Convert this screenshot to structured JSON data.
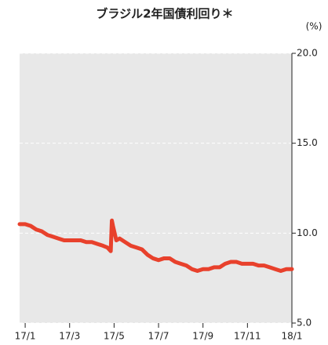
{
  "chart_data": {
    "type": "line",
    "title": "ブラジル2年国債利回り＊",
    "y_unit": "(%)",
    "x": [
      0.75,
      1.0,
      1.25,
      1.5,
      1.75,
      2.0,
      2.25,
      2.5,
      2.75,
      3.0,
      3.25,
      3.5,
      3.75,
      4.0,
      4.25,
      4.5,
      4.7,
      4.85,
      4.9,
      4.95,
      5.1,
      5.25,
      5.5,
      5.75,
      6.0,
      6.25,
      6.5,
      6.75,
      7.0,
      7.25,
      7.5,
      7.75,
      8.0,
      8.25,
      8.5,
      8.75,
      9.0,
      9.25,
      9.5,
      9.75,
      10.0,
      10.25,
      10.5,
      10.75,
      11.0,
      11.25,
      11.5,
      11.75,
      12.0,
      12.25,
      12.5,
      12.75,
      13.0
    ],
    "series": [
      {
        "name": "ブラジル2年国債利回り",
        "color": "#e8412c",
        "values": [
          10.5,
          10.5,
          10.4,
          10.2,
          10.1,
          9.9,
          9.8,
          9.7,
          9.6,
          9.6,
          9.6,
          9.6,
          9.5,
          9.5,
          9.4,
          9.3,
          9.2,
          9.0,
          10.7,
          10.4,
          9.6,
          9.7,
          9.5,
          9.3,
          9.2,
          9.1,
          8.8,
          8.6,
          8.5,
          8.6,
          8.6,
          8.4,
          8.3,
          8.2,
          8.0,
          7.9,
          8.0,
          8.0,
          8.1,
          8.1,
          8.3,
          8.4,
          8.4,
          8.3,
          8.3,
          8.3,
          8.2,
          8.2,
          8.1,
          8.0,
          7.9,
          8.0,
          8.0
        ]
      }
    ],
    "xlim": [
      0.75,
      13.0
    ],
    "xticks": [
      {
        "value": 1,
        "label": "17/1"
      },
      {
        "value": 3,
        "label": "17/3"
      },
      {
        "value": 5,
        "label": "17/5"
      },
      {
        "value": 7,
        "label": "17/7"
      },
      {
        "value": 9,
        "label": "17/9"
      },
      {
        "value": 11,
        "label": "17/11"
      },
      {
        "value": 13,
        "label": "18/1"
      }
    ],
    "ylim": [
      5,
      20
    ],
    "yticks": [
      {
        "value": 5,
        "label": "5.0"
      },
      {
        "value": 10,
        "label": "10.0"
      },
      {
        "value": 15,
        "label": "15.0"
      },
      {
        "value": 20,
        "label": "20.0"
      }
    ],
    "grid": true
  }
}
